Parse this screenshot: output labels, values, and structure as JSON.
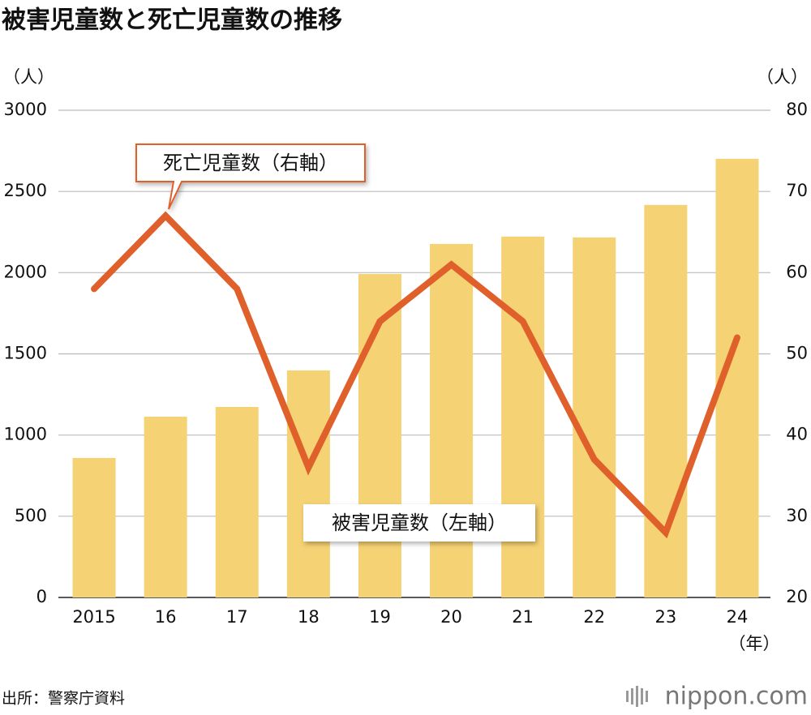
{
  "chart_data": {
    "type": "bar_line",
    "title": "被害児童数と死亡児童数の推移",
    "y_label": "（人）",
    "y2_label": "（人）",
    "x_label": "（年）",
    "categories": [
      "2015",
      "16",
      "17",
      "18",
      "19",
      "20",
      "21",
      "22",
      "23",
      "24"
    ],
    "series": [
      {
        "name": "被害児童数（左軸）",
        "type": "bar",
        "color": "#f5d273",
        "values": [
          859,
          1113,
          1173,
          1398,
          1992,
          2177,
          2222,
          2217,
          2417,
          2701
        ]
      },
      {
        "name": "死亡児童数（右軸）",
        "type": "line",
        "axis": "y2",
        "color": "#e0602c",
        "values": [
          58,
          67,
          58,
          36,
          54,
          61,
          54,
          37,
          28,
          52
        ]
      }
    ],
    "ylim": [
      0,
      3000
    ],
    "yticks": [
      0,
      500,
      1000,
      1500,
      2000,
      2500,
      3000
    ],
    "y2lim": [
      20,
      80
    ],
    "y2ticks": [
      20,
      30,
      40,
      50,
      60,
      70,
      80
    ],
    "grid": true,
    "source": "出所：警察庁資料",
    "logo": "nippon.com"
  }
}
